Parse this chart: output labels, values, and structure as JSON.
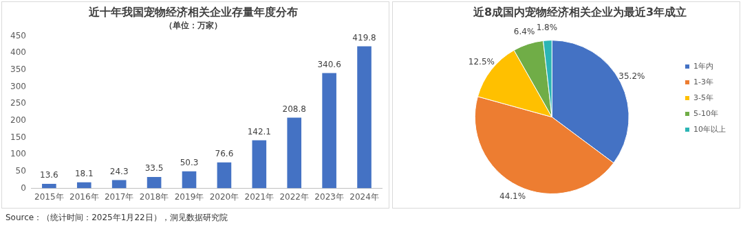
{
  "chart_data": [
    {
      "type": "bar",
      "title": "近十年我国宠物经济相关企业存量年度分布",
      "subtitle": "（单位：万家）",
      "categories": [
        "2015年",
        "2016年",
        "2017年",
        "2018年",
        "2019年",
        "2020年",
        "2021年",
        "2022年",
        "2023年",
        "2024年"
      ],
      "values": [
        13.6,
        18.1,
        24.3,
        33.5,
        50.3,
        76.6,
        142.1,
        208.8,
        340.6,
        419.8
      ],
      "color": "#4472c4",
      "ylim": [
        0,
        450
      ],
      "yticks": [
        0,
        50,
        100,
        150,
        200,
        250,
        300,
        350,
        400,
        450
      ],
      "grid": false,
      "legend": false,
      "data_labels": true,
      "annotations": [
        "Source：（统计时间：2025年1月22日），洞见数据研究院"
      ]
    },
    {
      "type": "pie",
      "title": "近8成国内宠物经济相关企业为最近3年成立",
      "categories": [
        "1年内",
        "1-3年",
        "3-5年",
        "5-10年",
        "10年以上"
      ],
      "values": [
        35.2,
        44.1,
        12.5,
        6.4,
        1.8
      ],
      "colors": [
        "#4472c4",
        "#ed7d31",
        "#ffc000",
        "#70ad47",
        "#2bb5b5"
      ],
      "value_labels": [
        "35.2%",
        "44.1%",
        "12.5%",
        "6.4%",
        "1.8%"
      ],
      "legend": "right"
    }
  ]
}
